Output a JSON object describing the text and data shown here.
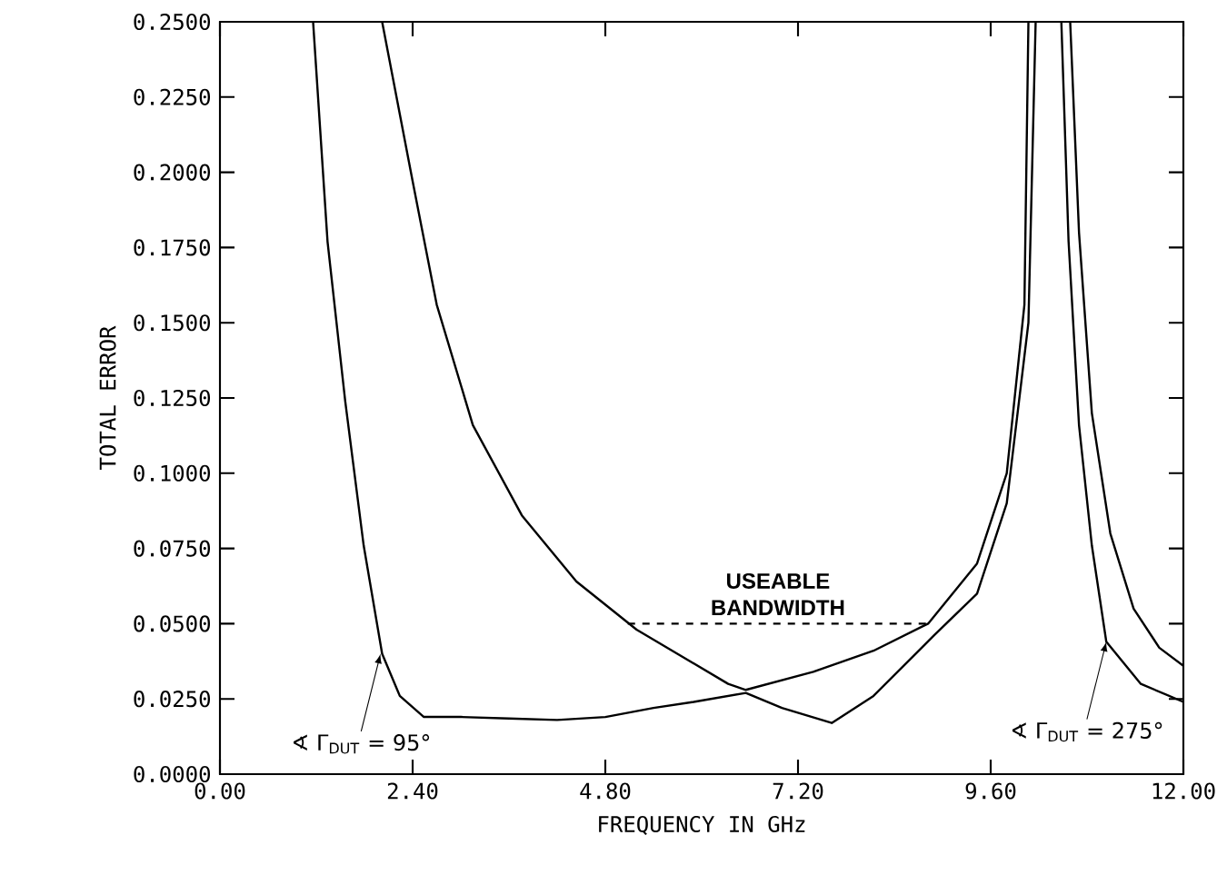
{
  "chart_data": {
    "type": "line",
    "xlabel": "FREQUENCY IN GHz",
    "ylabel": "TOTAL ERROR",
    "xlim": [
      0,
      12
    ],
    "ylim": [
      0,
      0.25
    ],
    "xticks": [
      {
        "value": 0,
        "label": "0.00"
      },
      {
        "value": 2.4,
        "label": "2.40"
      },
      {
        "value": 4.8,
        "label": "4.80"
      },
      {
        "value": 7.2,
        "label": "7.20"
      },
      {
        "value": 9.6,
        "label": "9.60"
      },
      {
        "value": 12,
        "label": "12.00"
      }
    ],
    "yticks": [
      {
        "value": 0,
        "label": "0.0000"
      },
      {
        "value": 0.025,
        "label": "0.0250"
      },
      {
        "value": 0.05,
        "label": "0.0500"
      },
      {
        "value": 0.075,
        "label": "0.0750"
      },
      {
        "value": 0.1,
        "label": "0.1000"
      },
      {
        "value": 0.125,
        "label": "0.1250"
      },
      {
        "value": 0.15,
        "label": "0.1500"
      },
      {
        "value": 0.175,
        "label": "0.1750"
      },
      {
        "value": 0.2,
        "label": "0.2000"
      },
      {
        "value": 0.225,
        "label": "0.2250"
      },
      {
        "value": 0.25,
        "label": "0.2500"
      }
    ],
    "grid": false,
    "marker": "none",
    "series": [
      {
        "color": "#000000",
        "line_style": "solid",
        "x": [
          2.02,
          2.4,
          2.7,
          3.15,
          3.76,
          4.44,
          5.19,
          6.33,
          6.55,
          7.39,
          8.14,
          8.82,
          9.43,
          9.8,
          10.02,
          10.07
        ],
        "values": [
          0.25,
          0.197,
          0.156,
          0.116,
          0.086,
          0.064,
          0.048,
          0.03,
          0.028,
          0.034,
          0.041,
          0.05,
          0.07,
          0.1,
          0.156,
          0.25
        ]
      },
      {
        "color": "#000000",
        "line_style": "solid",
        "x": [
          1.16,
          1.34,
          1.56,
          1.79,
          2.02,
          2.24,
          2.54,
          3.0,
          3.6,
          4.2,
          4.8,
          5.4,
          5.9,
          6.55,
          7.0,
          7.62,
          8.14,
          8.89,
          9.43,
          9.8,
          10.07,
          10.16
        ],
        "values": [
          0.25,
          0.177,
          0.124,
          0.076,
          0.04,
          0.026,
          0.019,
          0.019,
          0.0185,
          0.018,
          0.019,
          0.022,
          0.024,
          0.027,
          0.022,
          0.017,
          0.026,
          0.046,
          0.06,
          0.09,
          0.15,
          0.25
        ]
      },
      {
        "color": "#000000",
        "line_style": "solid",
        "x": [
          10.48,
          10.57,
          10.7,
          10.86,
          11.04,
          11.47,
          12.0
        ],
        "values": [
          0.25,
          0.177,
          0.116,
          0.076,
          0.044,
          0.03,
          0.024
        ]
      },
      {
        "color": "#000000",
        "line_style": "solid",
        "x": [
          10.59,
          10.7,
          10.86,
          11.09,
          11.38,
          11.7,
          12.0
        ],
        "values": [
          0.25,
          0.18,
          0.12,
          0.08,
          0.055,
          0.042,
          0.036
        ]
      },
      {
        "color": "#000000",
        "line_style": "dashed",
        "x": [
          5.08,
          8.82
        ],
        "values": [
          0.05,
          0.05
        ]
      }
    ],
    "annotations": [
      "USEABLE BANDWIDTH",
      {
        "text": "∢ Γ$_{DUT}$ = 95°",
        "x": 2.0,
        "y": 0.04
      },
      {
        "text": "∢ Γ$_{DUT}$ = 275°",
        "x": 11.04,
        "y": 0.044
      }
    ]
  }
}
